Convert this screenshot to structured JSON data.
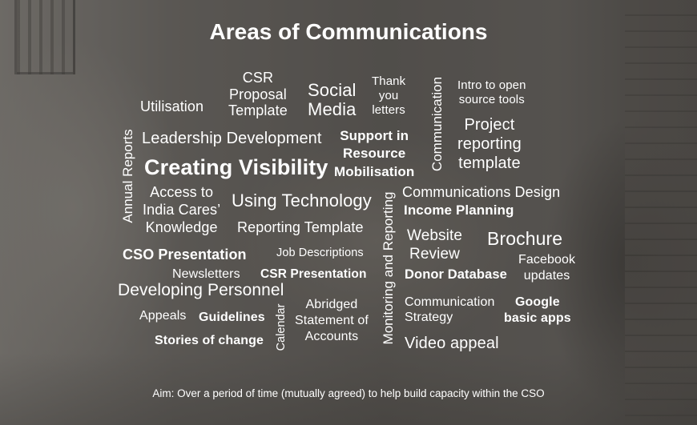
{
  "title": "Areas of Communications",
  "words": {
    "csr_proposal_template": "CSR\nProposal\nTemplate",
    "utilisation": "Utilisation",
    "social_media": "Social\nMedia",
    "thank_you_letters": "Thank\nyou\nletters",
    "communication_vertical": "Communication",
    "intro_open_source_tools": "Intro to open\nsource tools",
    "project_reporting_template": "Project\nreporting\ntemplate",
    "leadership_development": "Leadership Development",
    "support_resource_mobilisation": "Support in\nResource\nMobilisation",
    "annual_reports": "Annual Reports",
    "creating_visibility": "Creating Visibility",
    "access_india_cares": "Access to\nIndia Cares’\nKnowledge",
    "using_technology": "Using Technology",
    "reporting_template": "Reporting Template",
    "monitoring_reporting": "Monitoring and Reporting",
    "communications_design": "Communications Design",
    "income_planning": "Income Planning",
    "website_review": "Website\nReview",
    "brochure": "Brochure",
    "facebook_updates": "Facebook\nupdates",
    "cso_presentation_1": "CSO Presentation",
    "job_descriptions": "Job Descriptions",
    "newsletters": "Newsletters",
    "csr_presentation": "CSR Presentation",
    "donor_database": "Donor Database",
    "developing_personnel": "Developing Personnel",
    "abridged_statement": "Abridged\nStatement of\nAccounts",
    "communication_strategy": "Communication\nStrategy",
    "google_basic_apps": "Google\nbasic apps",
    "appeals": "Appeals",
    "guidelines": "Guidelines",
    "calendar": "Calendar",
    "stories_of_change": "Stories of change",
    "video_appeal": "Video appeal"
  },
  "aim": "Aim:  Over a period of time (mutually agreed) to help build capacity within the CSO"
}
